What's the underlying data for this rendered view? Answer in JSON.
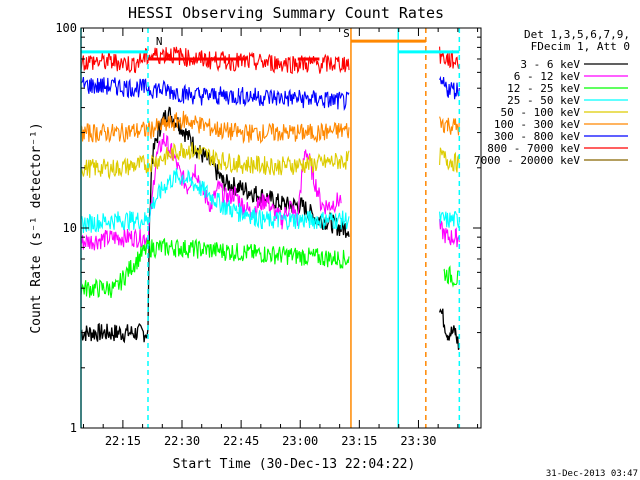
{
  "chart_data": {
    "type": "line",
    "title": "HESSI Observing Summary Count Rates",
    "xlabel": "Start Time (30-Dec-13 22:04:22)",
    "ylabel": "Count Rate (s⁻¹ detector⁻¹)",
    "y_scale": "log",
    "ylim": [
      1,
      100
    ],
    "xlim_minutes_after_start": [
      0,
      101.5
    ],
    "x_ticks": [
      {
        "label": "22:15",
        "minutes": 10.63
      },
      {
        "label": "22:30",
        "minutes": 25.63
      },
      {
        "label": "22:45",
        "minutes": 40.63
      },
      {
        "label": "23:00",
        "minutes": 55.63
      },
      {
        "label": "23:15",
        "minutes": 70.63
      },
      {
        "label": "23:30",
        "minutes": 85.63
      }
    ],
    "y_ticks": [
      {
        "label": "1",
        "value": 1
      },
      {
        "label": "10",
        "value": 10
      },
      {
        "label": "100",
        "value": 100
      }
    ],
    "legend": {
      "placement": "top-right",
      "header": [
        "Det 1,3,5,6,7,9,",
        "FDecim 1, Att 0"
      ]
    },
    "series": [
      {
        "name": "3 - 6 keV",
        "color": "#000000",
        "x": [
          0,
          9,
          17,
          18,
          20,
          22,
          25,
          28,
          30,
          33,
          36,
          40,
          44,
          48,
          52,
          56,
          58,
          60,
          62,
          64,
          66,
          68,
          89.5,
          91,
          93,
          95,
          96
        ],
        "y": [
          3,
          3,
          3,
          22,
          32,
          38,
          33,
          27,
          24,
          21,
          17,
          16,
          15,
          14,
          13,
          13,
          12,
          11,
          11,
          10.5,
          10,
          10,
          null,
          4,
          3,
          3,
          2.5
        ]
      },
      {
        "name": "6 - 12 keV",
        "color": "#ff00ff",
        "x": [
          0,
          9,
          17,
          18,
          19,
          21,
          23,
          25,
          27,
          29,
          31,
          33,
          35,
          37,
          39,
          41,
          43,
          45,
          47,
          49,
          51,
          53,
          55,
          56,
          57,
          59,
          61,
          63,
          66,
          89.5,
          91,
          93,
          95,
          96
        ],
        "y": [
          8.5,
          9,
          9,
          13,
          22,
          28,
          24,
          19,
          16,
          20,
          15,
          13,
          16,
          14,
          15,
          13,
          12,
          13,
          14,
          12,
          11,
          13,
          11,
          18,
          25,
          18,
          13,
          13,
          14,
          null,
          10,
          9,
          9,
          9
        ]
      },
      {
        "name": "12 - 25 keV",
        "color": "#00ff00",
        "x": [
          0,
          9,
          17,
          24,
          44,
          68,
          89.5,
          92,
          96
        ],
        "y": [
          5,
          5,
          8,
          8,
          7.5,
          7,
          null,
          6,
          5.5
        ]
      },
      {
        "name": "25 - 50 keV",
        "color": "#00ffff",
        "x": [
          0,
          9,
          17,
          18,
          20,
          22,
          24,
          26,
          28,
          30,
          32,
          34,
          36,
          38,
          40,
          42,
          44,
          46,
          48,
          50,
          52,
          54,
          56,
          58,
          60,
          62,
          64,
          66,
          68,
          89.5,
          91,
          93,
          96
        ],
        "y": [
          10.5,
          11,
          11,
          13,
          15,
          17,
          18,
          18,
          17,
          16,
          15,
          14,
          13,
          12.5,
          12,
          12,
          11.5,
          11,
          11,
          11,
          11,
          11,
          11,
          11,
          11,
          11,
          11,
          11,
          11,
          null,
          11,
          11,
          11
        ]
      },
      {
        "name": "50 - 100 keV",
        "color": "#ddcc00",
        "x": [
          0,
          9,
          17,
          22,
          26,
          30,
          35,
          40,
          50,
          60,
          68,
          89.5,
          91,
          93,
          96
        ],
        "y": [
          20,
          20,
          21,
          23,
          25,
          24,
          22,
          21,
          20.5,
          21,
          22,
          null,
          23,
          22,
          21
        ]
      },
      {
        "name": "100 - 300 keV",
        "color": "#ff8800",
        "x": [
          0,
          9,
          17,
          22,
          26,
          30,
          35,
          40,
          50,
          60,
          68,
          89.5,
          91,
          93,
          96
        ],
        "y": [
          30,
          30,
          31,
          33,
          35,
          33,
          31,
          30,
          30,
          30,
          31,
          null,
          34,
          33,
          32
        ]
      },
      {
        "name": "300 - 800 keV",
        "color": "#0000ff",
        "x": [
          0,
          9,
          17,
          22,
          26,
          30,
          35,
          40,
          50,
          60,
          68,
          89.5,
          91,
          93,
          96
        ],
        "y": [
          52,
          51,
          50,
          49,
          47,
          46,
          46,
          46,
          45,
          44,
          43,
          null,
          53,
          50,
          49
        ]
      },
      {
        "name": "800 - 7000 keV",
        "color": "#ff0000",
        "x": [
          0,
          9,
          13,
          17,
          22,
          26,
          30,
          35,
          40,
          50,
          60,
          68,
          89.5,
          91,
          93,
          96
        ],
        "y": [
          68,
          68,
          66,
          72,
          75,
          72,
          70,
          69,
          68,
          67,
          66,
          67,
          null,
          73,
          70,
          68
        ]
      },
      {
        "name": "7000 - 20000 keV",
        "color": "#886600",
        "x": [],
        "y": []
      }
    ],
    "markers": [
      {
        "type": "vertical-line",
        "x": 0,
        "color": "#00ffff",
        "style": "solid"
      },
      {
        "type": "vertical-line",
        "x": 17,
        "color": "#00ffff",
        "style": "dashed"
      },
      {
        "type": "vertical-line",
        "x": 68.5,
        "color": "#ff8800",
        "style": "solid"
      },
      {
        "type": "vertical-line",
        "x": 80.5,
        "color": "#00ffff",
        "style": "solid"
      },
      {
        "type": "vertical-line",
        "x": 87.5,
        "color": "#ff8800",
        "style": "dashed"
      },
      {
        "type": "vertical-line",
        "x": 96,
        "color": "#00ffff",
        "style": "dashed"
      }
    ],
    "flag_bars": [
      {
        "color": "#00ffff",
        "y": 76,
        "x": [
          [
            0,
            17
          ],
          [
            80.5,
            96
          ]
        ]
      },
      {
        "color": "#ff8800",
        "y": 86,
        "x": [
          [
            68.5,
            87.5
          ]
        ]
      },
      {
        "color": "#ff0000",
        "y": 70,
        "x": [
          [
            17,
            42
          ],
          [
            55,
            60.5
          ]
        ]
      }
    ],
    "annotations": [
      {
        "text": "S",
        "x": 66.5,
        "y": 90,
        "color": "#ff8800"
      },
      {
        "text": "N",
        "x": 19,
        "y": 82,
        "color": "#00ffff"
      }
    ]
  },
  "footer": {
    "timestamp": "31-Dec-2013 03:47"
  }
}
